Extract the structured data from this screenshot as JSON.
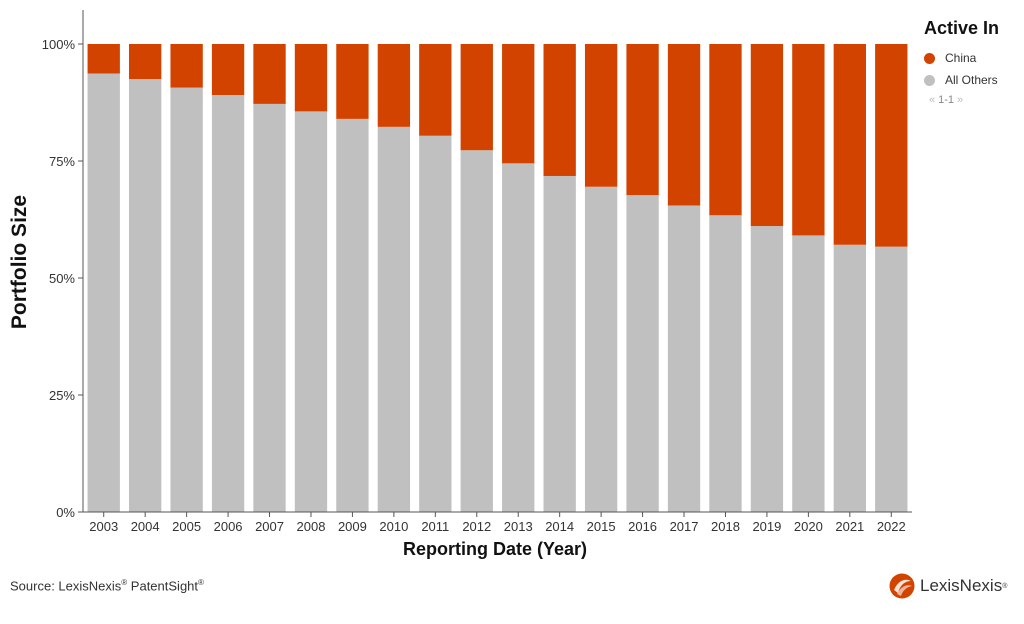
{
  "chart_data": {
    "type": "bar",
    "stacked": true,
    "normalized": true,
    "categories": [
      "2003",
      "2004",
      "2005",
      "2006",
      "2007",
      "2008",
      "2009",
      "2010",
      "2011",
      "2012",
      "2013",
      "2014",
      "2015",
      "2016",
      "2017",
      "2018",
      "2019",
      "2020",
      "2021",
      "2022"
    ],
    "series": [
      {
        "name": "All Others",
        "color": "#c0c0c0",
        "values": [
          93.7,
          92.5,
          90.7,
          89.1,
          87.2,
          85.6,
          84.0,
          82.3,
          80.4,
          77.3,
          74.5,
          71.8,
          69.5,
          67.7,
          65.5,
          63.4,
          61.1,
          59.1,
          57.1,
          56.7
        ]
      },
      {
        "name": "China",
        "color": "#d24300",
        "values": [
          6.3,
          7.5,
          9.3,
          10.9,
          12.8,
          14.4,
          16.0,
          17.7,
          19.6,
          22.7,
          25.5,
          28.2,
          30.5,
          32.3,
          34.5,
          36.6,
          38.9,
          40.9,
          42.9,
          43.3
        ]
      }
    ],
    "ylim": [
      0,
      100
    ],
    "yticks": [
      "0%",
      "25%",
      "50%",
      "75%",
      "100%"
    ],
    "ylabel": "Portfolio Size",
    "xlabel": "Reporting Date (Year)",
    "legend": {
      "title": "Active In",
      "position": "top-right"
    }
  },
  "legend": {
    "title": "Active In",
    "items": [
      {
        "label": "China",
        "color": "#d24300"
      },
      {
        "label": "All Others",
        "color": "#c0c0c0"
      }
    ],
    "pager": "1-1"
  },
  "footer": {
    "source_prefix": "Source: LexisNexis",
    "source_reg1": "®",
    "source_middle": " PatentSight",
    "source_reg2": "®",
    "brand": "LexisNexis",
    "brand_mark": "®",
    "brand_color": "#d24300"
  }
}
